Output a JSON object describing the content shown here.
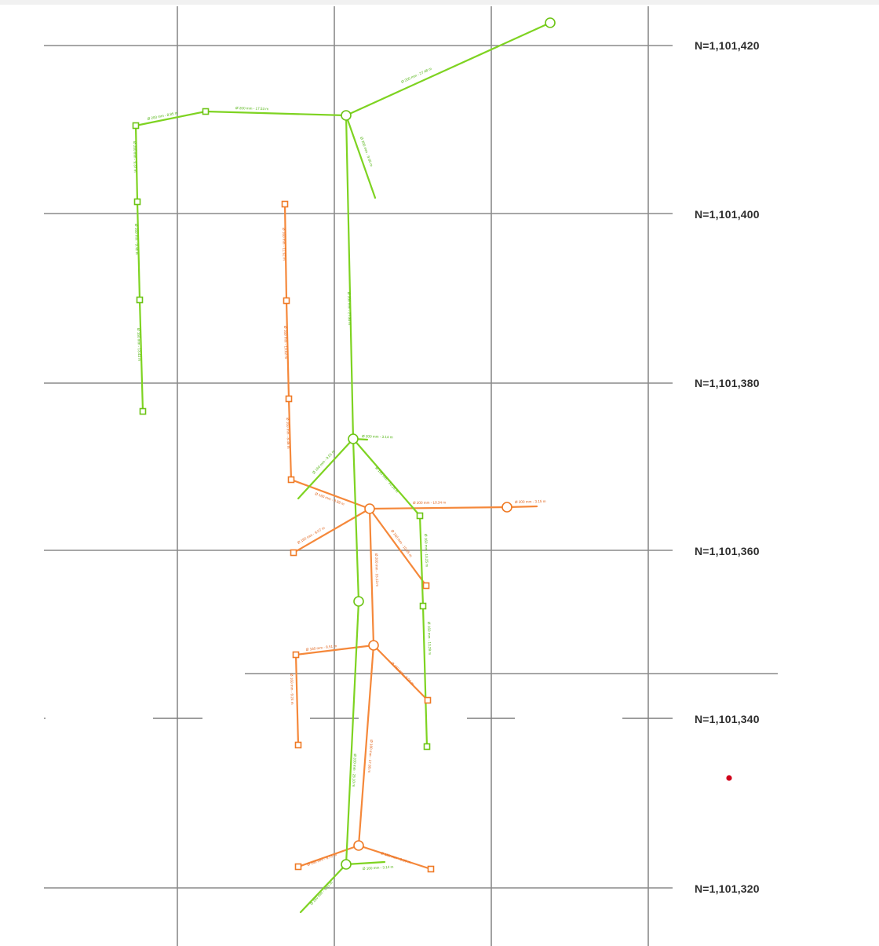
{
  "northing_labels": {
    "n420": "N=1,101,420",
    "n400": "N=1,101,400",
    "n380": "N=1,101,380",
    "n360": "N=1,101,360",
    "n340": "N=1,101,340",
    "n320": "N=1,101,320"
  },
  "network_colors": {
    "green": "#7ed321",
    "orange": "#f5883a",
    "marker": "#d0021b"
  },
  "pipe_labels": {
    "g_ne_main": "Ø 200 mm - 27.48 m",
    "g_top_mid": "Ø 200 mm - 17.53 m",
    "g_top_left": "Ø 200 mm - 8.85 m",
    "g_stub_right": "Ø 200 mm - 9.65 m",
    "g_left_1": "Ø 200 mm - 9.37 m",
    "g_left_2": "Ø 160 mm - 9.49 m",
    "g_left_3": "Ø 160 mm - 13.43 m",
    "g_trunk_upper": "Ø 200 mm - 27.30 m",
    "g_junction_east": "Ø 200 mm - 3.14 m",
    "g_junction_sw": "Ø 160 mm - 9.01 m",
    "g_junction_se": "Ø 160 mm - 10.25 m",
    "g_trunk_lower": "Ø 200 mm - 28.10 m",
    "g_right_1": "Ø 160 mm - 10.25 m",
    "g_right_2": "Ø 160 mm - 13.29 m",
    "g_bottom_sw": "Ø 160 mm - 5.51 m",
    "g_bottom_e": "Ø 160 mm - 3.14 m",
    "o_left_1": "Ø 160 mm - 11.92 m",
    "o_left_2": "Ø 160 mm - 10.62 m",
    "o_left_3": "Ø 160 mm - 8.36 m",
    "o_diag_in": "Ø 160 mm - 8.88 m",
    "o_east": "Ø 200 mm - 10.34 m",
    "o_east_stub": "Ø 200 mm - 3.15 m",
    "o_sw": "Ø 160 mm - 9.07 m",
    "o_se": "Ø 160 mm - 10.55 m",
    "o_trunk": "Ø 200 mm - 15.13 m",
    "o_west2": "Ø 160 mm - 8.51 m",
    "o_sw2": "Ø 160 mm - 9.24 m",
    "o_se2": "Ø 160 mm - 9.02 m",
    "o_trunk2": "Ø 160 mm - 17.08 m",
    "o_bottom_w": "Ø 160 mm - 6.71 m",
    "o_bottom_e": "Ø 160 mm - 8.95 m"
  }
}
